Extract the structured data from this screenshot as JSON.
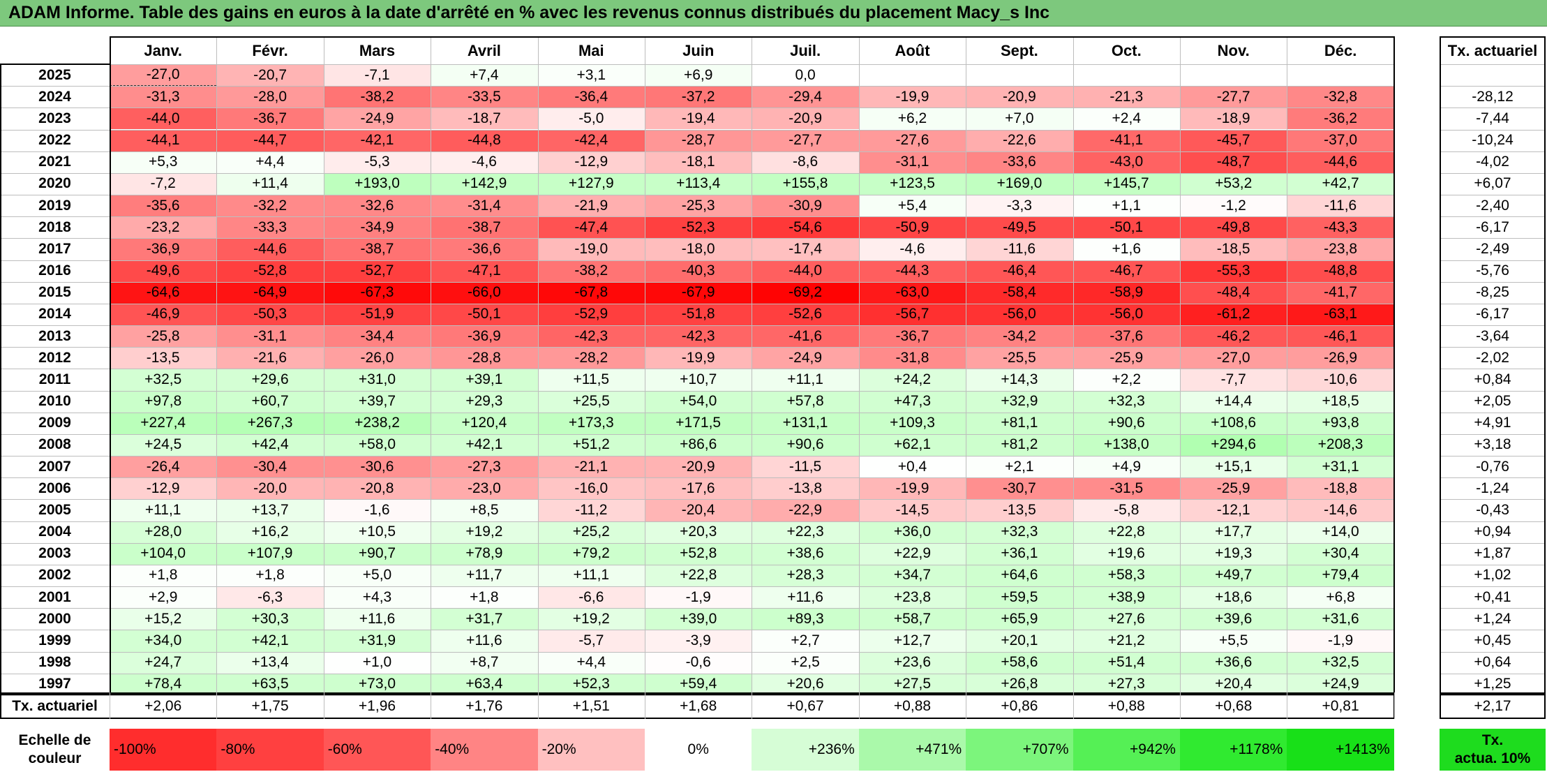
{
  "title": "ADAM Informe. Table des gains en euros à la date d'arrêté en % avec les revenus connus distribués du placement Macy_s Inc",
  "chart_data": {
    "type": "heatmap",
    "title": "ADAM Informe. Table des gains en euros à la date d'arrêté en % avec les revenus connus distribués du placement Macy_s Inc",
    "columns": [
      "Janv.",
      "Févr.",
      "Mars",
      "Avril",
      "Mai",
      "Juin",
      "Juil.",
      "Août",
      "Sept.",
      "Oct.",
      "Nov.",
      "Déc."
    ],
    "annual_header": "Tx. actuariel",
    "rows": [
      {
        "year": "2025",
        "values": [
          "-27,0",
          "-20,7",
          "-7,1",
          "+7,4",
          "+3,1",
          "+6,9",
          "0,0",
          "",
          "",
          "",
          "",
          ""
        ],
        "annual": ""
      },
      {
        "year": "2024",
        "values": [
          "-31,3",
          "-28,0",
          "-38,2",
          "-33,5",
          "-36,4",
          "-37,2",
          "-29,4",
          "-19,9",
          "-20,9",
          "-21,3",
          "-27,7",
          "-32,8"
        ],
        "annual": "-28,12"
      },
      {
        "year": "2023",
        "values": [
          "-44,0",
          "-36,7",
          "-24,9",
          "-18,7",
          "-5,0",
          "-19,4",
          "-20,9",
          "+6,2",
          "+7,0",
          "+2,4",
          "-18,9",
          "-36,2"
        ],
        "annual": "-7,44"
      },
      {
        "year": "2022",
        "values": [
          "-44,1",
          "-44,7",
          "-42,1",
          "-44,8",
          "-42,4",
          "-28,7",
          "-27,7",
          "-27,6",
          "-22,6",
          "-41,1",
          "-45,7",
          "-37,0"
        ],
        "annual": "-10,24"
      },
      {
        "year": "2021",
        "values": [
          "+5,3",
          "+4,4",
          "-5,3",
          "-4,6",
          "-12,9",
          "-18,1",
          "-8,6",
          "-31,1",
          "-33,6",
          "-43,0",
          "-48,7",
          "-44,6"
        ],
        "annual": "-4,02"
      },
      {
        "year": "2020",
        "values": [
          "-7,2",
          "+11,4",
          "+193,0",
          "+142,9",
          "+127,9",
          "+113,4",
          "+155,8",
          "+123,5",
          "+169,0",
          "+145,7",
          "+53,2",
          "+42,7"
        ],
        "annual": "+6,07"
      },
      {
        "year": "2019",
        "values": [
          "-35,6",
          "-32,2",
          "-32,6",
          "-31,4",
          "-21,9",
          "-25,3",
          "-30,9",
          "+5,4",
          "-3,3",
          "+1,1",
          "-1,2",
          "-11,6"
        ],
        "annual": "-2,40"
      },
      {
        "year": "2018",
        "values": [
          "-23,2",
          "-33,3",
          "-34,9",
          "-38,7",
          "-47,4",
          "-52,3",
          "-54,6",
          "-50,9",
          "-49,5",
          "-50,1",
          "-49,8",
          "-43,3"
        ],
        "annual": "-6,17"
      },
      {
        "year": "2017",
        "values": [
          "-36,9",
          "-44,6",
          "-38,7",
          "-36,6",
          "-19,0",
          "-18,0",
          "-17,4",
          "-4,6",
          "-11,6",
          "+1,6",
          "-18,5",
          "-23,8"
        ],
        "annual": "-2,49"
      },
      {
        "year": "2016",
        "values": [
          "-49,6",
          "-52,8",
          "-52,7",
          "-47,1",
          "-38,2",
          "-40,3",
          "-44,0",
          "-44,3",
          "-46,4",
          "-46,7",
          "-55,3",
          "-48,8"
        ],
        "annual": "-5,76"
      },
      {
        "year": "2015",
        "values": [
          "-64,6",
          "-64,9",
          "-67,3",
          "-66,0",
          "-67,8",
          "-67,9",
          "-69,2",
          "-63,0",
          "-58,4",
          "-58,9",
          "-48,4",
          "-41,7"
        ],
        "annual": "-8,25"
      },
      {
        "year": "2014",
        "values": [
          "-46,9",
          "-50,3",
          "-51,9",
          "-50,1",
          "-52,9",
          "-51,8",
          "-52,6",
          "-56,7",
          "-56,0",
          "-56,0",
          "-61,2",
          "-63,1"
        ],
        "annual": "-6,17"
      },
      {
        "year": "2013",
        "values": [
          "-25,8",
          "-31,1",
          "-34,4",
          "-36,9",
          "-42,3",
          "-42,3",
          "-41,6",
          "-36,7",
          "-34,2",
          "-37,6",
          "-46,2",
          "-46,1"
        ],
        "annual": "-3,64"
      },
      {
        "year": "2012",
        "values": [
          "-13,5",
          "-21,6",
          "-26,0",
          "-28,8",
          "-28,2",
          "-19,9",
          "-24,9",
          "-31,8",
          "-25,5",
          "-25,9",
          "-27,0",
          "-26,9"
        ],
        "annual": "-2,02"
      },
      {
        "year": "2011",
        "values": [
          "+32,5",
          "+29,6",
          "+31,0",
          "+39,1",
          "+11,5",
          "+10,7",
          "+11,1",
          "+24,2",
          "+14,3",
          "+2,2",
          "-7,7",
          "-10,6"
        ],
        "annual": "+0,84"
      },
      {
        "year": "2010",
        "values": [
          "+97,8",
          "+60,7",
          "+39,7",
          "+29,3",
          "+25,5",
          "+54,0",
          "+57,8",
          "+47,3",
          "+32,9",
          "+32,3",
          "+14,4",
          "+18,5"
        ],
        "annual": "+2,05"
      },
      {
        "year": "2009",
        "values": [
          "+227,4",
          "+267,3",
          "+238,2",
          "+120,4",
          "+173,3",
          "+171,5",
          "+131,1",
          "+109,3",
          "+81,1",
          "+90,6",
          "+108,6",
          "+93,8"
        ],
        "annual": "+4,91"
      },
      {
        "year": "2008",
        "values": [
          "+24,5",
          "+42,4",
          "+58,0",
          "+42,1",
          "+51,2",
          "+86,6",
          "+90,6",
          "+62,1",
          "+81,2",
          "+138,0",
          "+294,6",
          "+208,3"
        ],
        "annual": "+3,18"
      },
      {
        "year": "2007",
        "values": [
          "-26,4",
          "-30,4",
          "-30,6",
          "-27,3",
          "-21,1",
          "-20,9",
          "-11,5",
          "+0,4",
          "+2,1",
          "+4,9",
          "+15,1",
          "+31,1"
        ],
        "annual": "-0,76"
      },
      {
        "year": "2006",
        "values": [
          "-12,9",
          "-20,0",
          "-20,8",
          "-23,0",
          "-16,0",
          "-17,6",
          "-13,8",
          "-19,9",
          "-30,7",
          "-31,5",
          "-25,9",
          "-18,8"
        ],
        "annual": "-1,24"
      },
      {
        "year": "2005",
        "values": [
          "+11,1",
          "+13,7",
          "-1,6",
          "+8,5",
          "-11,2",
          "-20,4",
          "-22,9",
          "-14,5",
          "-13,5",
          "-5,8",
          "-12,1",
          "-14,6"
        ],
        "annual": "-0,43"
      },
      {
        "year": "2004",
        "values": [
          "+28,0",
          "+16,2",
          "+10,5",
          "+19,2",
          "+25,2",
          "+20,3",
          "+22,3",
          "+36,0",
          "+32,3",
          "+22,8",
          "+17,7",
          "+14,0"
        ],
        "annual": "+0,94"
      },
      {
        "year": "2003",
        "values": [
          "+104,0",
          "+107,9",
          "+90,7",
          "+78,9",
          "+79,2",
          "+52,8",
          "+38,6",
          "+22,9",
          "+36,1",
          "+19,6",
          "+19,3",
          "+30,4"
        ],
        "annual": "+1,87"
      },
      {
        "year": "2002",
        "values": [
          "+1,8",
          "+1,8",
          "+5,0",
          "+11,7",
          "+11,1",
          "+22,8",
          "+28,3",
          "+34,7",
          "+64,6",
          "+58,3",
          "+49,7",
          "+79,4"
        ],
        "annual": "+1,02"
      },
      {
        "year": "2001",
        "values": [
          "+2,9",
          "-6,3",
          "+4,3",
          "+1,8",
          "-6,6",
          "-1,9",
          "+11,6",
          "+23,8",
          "+59,5",
          "+38,9",
          "+18,6",
          "+6,8"
        ],
        "annual": "+0,41"
      },
      {
        "year": "2000",
        "values": [
          "+15,2",
          "+30,3",
          "+11,6",
          "+31,7",
          "+19,2",
          "+39,0",
          "+89,3",
          "+58,7",
          "+65,9",
          "+27,6",
          "+39,6",
          "+31,6"
        ],
        "annual": "+1,24"
      },
      {
        "year": "1999",
        "values": [
          "+34,0",
          "+42,1",
          "+31,9",
          "+11,6",
          "-5,7",
          "-3,9",
          "+2,7",
          "+12,7",
          "+20,1",
          "+21,2",
          "+5,5",
          "-1,9"
        ],
        "annual": "+0,45"
      },
      {
        "year": "1998",
        "values": [
          "+24,7",
          "+13,4",
          "+1,0",
          "+8,7",
          "+4,4",
          "-0,6",
          "+2,5",
          "+23,6",
          "+58,6",
          "+51,4",
          "+36,6",
          "+32,5"
        ],
        "annual": "+0,64"
      },
      {
        "year": "1997",
        "values": [
          "+78,4",
          "+63,5",
          "+73,0",
          "+63,4",
          "+52,3",
          "+59,4",
          "+20,6",
          "+27,5",
          "+26,8",
          "+27,3",
          "+20,4",
          "+24,9"
        ],
        "annual": "+1,25"
      }
    ],
    "footer": {
      "label": "Tx. actuariel",
      "values": [
        "+2,06",
        "+1,75",
        "+1,96",
        "+1,76",
        "+1,51",
        "+1,68",
        "+0,67",
        "+0,88",
        "+0,86",
        "+0,88",
        "+0,68",
        "+0,81"
      ],
      "annual": "+2,17"
    },
    "legend": {
      "label_line1": "Echelle de",
      "label_line2": "couleur",
      "stops": [
        {
          "text": "-100%",
          "color": "#ff2d2d",
          "align": "left"
        },
        {
          "text": "-80%",
          "color": "#ff4040",
          "align": "left"
        },
        {
          "text": "-60%",
          "color": "#ff5656",
          "align": "left"
        },
        {
          "text": "-40%",
          "color": "#ff8484",
          "align": "left"
        },
        {
          "text": "-20%",
          "color": "#ffc0c0",
          "align": "left"
        },
        {
          "text": "0%",
          "color": "#ffffff",
          "align": "center"
        },
        {
          "text": "+236%",
          "color": "#d6fdd6",
          "align": "right"
        },
        {
          "text": "+471%",
          "color": "#aaf9aa",
          "align": "right"
        },
        {
          "text": "+707%",
          "color": "#7cf57c",
          "align": "right"
        },
        {
          "text": "+942%",
          "color": "#55f055",
          "align": "right"
        },
        {
          "text": "+1178%",
          "color": "#30ea30",
          "align": "right"
        },
        {
          "text": "+1413%",
          "color": "#18e018",
          "align": "right"
        }
      ],
      "extra_line1": "Tx.",
      "extra_line2": "actua. 10%",
      "extra_color": "#1edc1e"
    },
    "colors": {
      "title_bar": "#7dc87d",
      "max_negative": "#ff0000",
      "max_positive": "#00e600"
    }
  }
}
